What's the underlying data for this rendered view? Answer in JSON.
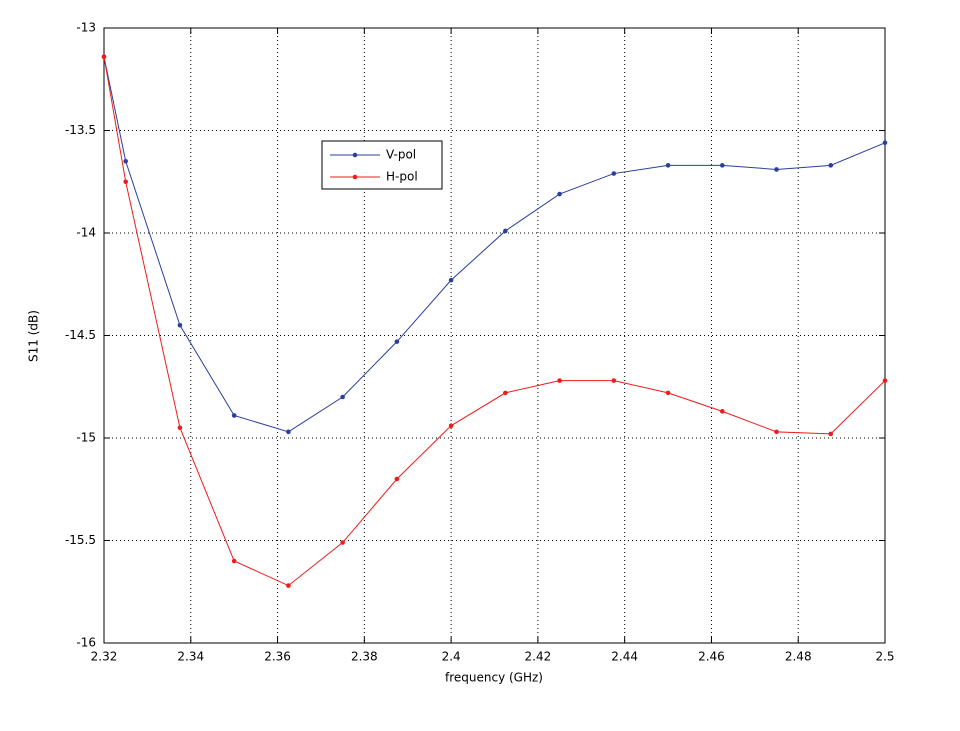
{
  "chart_data": {
    "type": "line",
    "xlabel": "frequency (GHz)",
    "ylabel": "S11 (dB)",
    "x": [
      2.32,
      2.325,
      2.3375,
      2.35,
      2.3625,
      2.375,
      2.3875,
      2.4,
      2.4125,
      2.425,
      2.4375,
      2.45,
      2.4625,
      2.475,
      2.4875,
      2.5
    ],
    "series": [
      {
        "name": "V-pol",
        "color": "#2a3f9e",
        "values": [
          -13.14,
          -13.65,
          -14.45,
          -14.89,
          -14.97,
          -14.8,
          -14.53,
          -14.23,
          -13.99,
          -13.81,
          -13.71,
          -13.67,
          -13.67,
          -13.69,
          -13.67,
          -13.56
        ]
      },
      {
        "name": "H-pol",
        "color": "#ee1c1c",
        "values": [
          -13.14,
          -13.75,
          -14.95,
          -15.6,
          -15.72,
          -15.51,
          -15.2,
          -14.94,
          -14.78,
          -14.72,
          -14.72,
          -14.78,
          -14.87,
          -14.97,
          -14.98,
          -14.72
        ]
      }
    ],
    "xlim": [
      2.32,
      2.5
    ],
    "xticks": [
      2.32,
      2.34,
      2.36,
      2.38,
      2.4,
      2.42,
      2.44,
      2.46,
      2.48,
      2.5
    ],
    "ylim": [
      -16,
      -13
    ],
    "yticks": [
      -16,
      -15.5,
      -15,
      -14.5,
      -14,
      -13.5,
      -13
    ],
    "grid": true
  }
}
